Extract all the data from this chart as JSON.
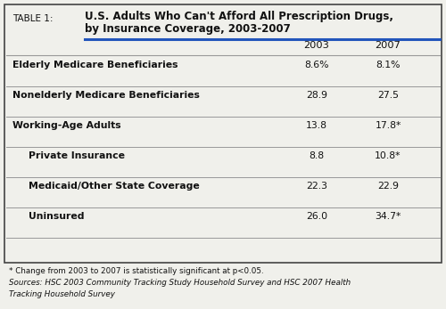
{
  "table_label": "TABLE 1:",
  "title_line1": "U.S. Adults Who Can't Afford All Prescription Drugs,",
  "title_line2": "by Insurance Coverage, 2003-2007",
  "col_headers": [
    "2003",
    "2007"
  ],
  "rows": [
    {
      "label": "Elderly Medicare Beneficiaries",
      "val2003": "8.6%",
      "val2007": "8.1%",
      "bold": true,
      "indent": false
    },
    {
      "label": "Nonelderly Medicare Beneficiaries",
      "val2003": "28.9",
      "val2007": "27.5",
      "bold": true,
      "indent": false
    },
    {
      "label": "Working-Age Adults",
      "val2003": "13.8",
      "val2007": "17.8*",
      "bold": true,
      "indent": false
    },
    {
      "label": "Private Insurance",
      "val2003": "8.8",
      "val2007": "10.8*",
      "bold": true,
      "indent": true
    },
    {
      "label": "Medicaid/Other State Coverage",
      "val2003": "22.3",
      "val2007": "22.9",
      "bold": true,
      "indent": true
    },
    {
      "label": "Uninsured",
      "val2003": "26.0",
      "val2007": "34.7*",
      "bold": true,
      "indent": true
    }
  ],
  "footnote1": "* Change from 2003 to 2007 is statistically significant at p<0.05.",
  "footnote2": "Sources: HSC 2003 Community Tracking Study Household Survey and HSC 2007 Health",
  "footnote3": "Tracking Household Survey",
  "bg_color": "#f0f0eb",
  "border_color": "#444444",
  "header_line_color": "#2255bb",
  "divider_color": "#999999",
  "text_color": "#111111"
}
